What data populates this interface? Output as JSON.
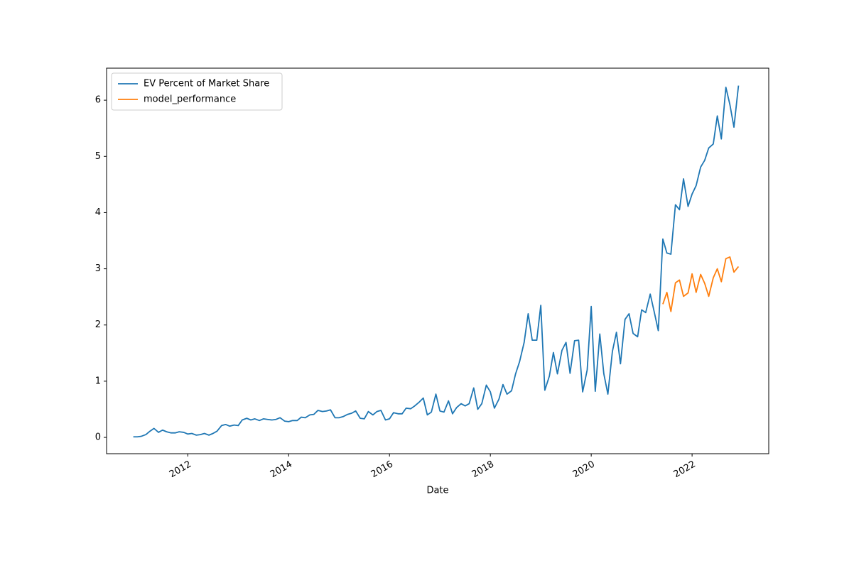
{
  "chart_data": {
    "type": "line",
    "xlabel": "Date",
    "legend": "upper left",
    "grid": false,
    "xlim": [
      2010.39,
      2023.52
    ],
    "xticks": [
      2012,
      2014,
      2016,
      2018,
      2020,
      2022
    ],
    "ylim": [
      -0.29,
      6.57
    ],
    "yticks": [
      0,
      1,
      2,
      3,
      4,
      5,
      6
    ],
    "series": [
      {
        "name": "EV Percent of Market Share",
        "color": "#1f77b4",
        "x": [
          2010.92,
          2011.0,
          2011.08,
          2011.17,
          2011.25,
          2011.33,
          2011.42,
          2011.5,
          2011.58,
          2011.67,
          2011.75,
          2011.83,
          2011.92,
          2012.0,
          2012.08,
          2012.17,
          2012.25,
          2012.33,
          2012.42,
          2012.5,
          2012.58,
          2012.67,
          2012.75,
          2012.83,
          2012.92,
          2013.0,
          2013.08,
          2013.17,
          2013.25,
          2013.33,
          2013.42,
          2013.5,
          2013.58,
          2013.67,
          2013.75,
          2013.83,
          2013.92,
          2014.0,
          2014.08,
          2014.17,
          2014.25,
          2014.33,
          2014.42,
          2014.5,
          2014.58,
          2014.67,
          2014.75,
          2014.83,
          2014.92,
          2015.0,
          2015.08,
          2015.17,
          2015.25,
          2015.33,
          2015.42,
          2015.5,
          2015.58,
          2015.67,
          2015.75,
          2015.83,
          2015.92,
          2016.0,
          2016.08,
          2016.17,
          2016.25,
          2016.33,
          2016.42,
          2016.5,
          2016.58,
          2016.67,
          2016.75,
          2016.83,
          2016.92,
          2017.0,
          2017.08,
          2017.17,
          2017.25,
          2017.33,
          2017.42,
          2017.5,
          2017.58,
          2017.67,
          2017.75,
          2017.83,
          2017.92,
          2018.0,
          2018.08,
          2018.17,
          2018.25,
          2018.33,
          2018.42,
          2018.5,
          2018.58,
          2018.67,
          2018.75,
          2018.83,
          2018.92,
          2019.0,
          2019.08,
          2019.17,
          2019.25,
          2019.33,
          2019.42,
          2019.5,
          2019.58,
          2019.67,
          2019.75,
          2019.83,
          2019.92,
          2020.0,
          2020.08,
          2020.17,
          2020.25,
          2020.33,
          2020.42,
          2020.5,
          2020.58,
          2020.67,
          2020.75,
          2020.83,
          2020.92,
          2021.0,
          2021.08,
          2021.17,
          2021.25,
          2021.33,
          2021.42,
          2021.5,
          2021.58,
          2021.67,
          2021.75,
          2021.83,
          2021.92,
          2022.0,
          2022.08,
          2022.17,
          2022.25,
          2022.33,
          2022.42,
          2022.5,
          2022.58,
          2022.67,
          2022.75,
          2022.83,
          2022.92
        ],
        "values": [
          0.01,
          0.01,
          0.02,
          0.05,
          0.11,
          0.16,
          0.09,
          0.13,
          0.1,
          0.08,
          0.08,
          0.1,
          0.09,
          0.06,
          0.07,
          0.04,
          0.05,
          0.07,
          0.04,
          0.07,
          0.11,
          0.21,
          0.23,
          0.2,
          0.22,
          0.21,
          0.31,
          0.34,
          0.31,
          0.33,
          0.3,
          0.33,
          0.32,
          0.31,
          0.32,
          0.35,
          0.29,
          0.28,
          0.3,
          0.3,
          0.36,
          0.35,
          0.4,
          0.41,
          0.48,
          0.46,
          0.47,
          0.49,
          0.35,
          0.35,
          0.37,
          0.41,
          0.43,
          0.47,
          0.34,
          0.33,
          0.46,
          0.4,
          0.46,
          0.48,
          0.31,
          0.33,
          0.44,
          0.42,
          0.42,
          0.52,
          0.51,
          0.56,
          0.62,
          0.7,
          0.4,
          0.45,
          0.77,
          0.47,
          0.45,
          0.65,
          0.42,
          0.53,
          0.6,
          0.56,
          0.6,
          0.88,
          0.5,
          0.6,
          0.93,
          0.81,
          0.52,
          0.68,
          0.94,
          0.77,
          0.83,
          1.13,
          1.35,
          1.69,
          2.2,
          1.73,
          1.73,
          2.35,
          0.84,
          1.09,
          1.51,
          1.13,
          1.55,
          1.69,
          1.14,
          1.72,
          1.73,
          0.81,
          1.2,
          2.33,
          0.82,
          1.84,
          1.13,
          0.77,
          1.53,
          1.87,
          1.31,
          2.1,
          2.2,
          1.85,
          1.79,
          2.27,
          2.22,
          2.55,
          2.23,
          1.9,
          3.53,
          3.28,
          3.26,
          4.14,
          4.05,
          4.6,
          4.11,
          4.33,
          4.48,
          4.81,
          4.93,
          5.15,
          5.22,
          5.72,
          5.31,
          6.23,
          5.92,
          5.52,
          6.26
        ]
      },
      {
        "name": "model_performance",
        "color": "#ff7f0e",
        "x": [
          2021.42,
          2021.5,
          2021.58,
          2021.67,
          2021.75,
          2021.83,
          2021.92,
          2022.0,
          2022.08,
          2022.17,
          2022.25,
          2022.33,
          2022.42,
          2022.5,
          2022.58,
          2022.67,
          2022.75,
          2022.83,
          2022.92
        ],
        "values": [
          2.37,
          2.58,
          2.24,
          2.75,
          2.8,
          2.51,
          2.57,
          2.91,
          2.58,
          2.9,
          2.74,
          2.51,
          2.84,
          3.0,
          2.77,
          3.18,
          3.21,
          2.94,
          3.04
        ]
      }
    ]
  }
}
